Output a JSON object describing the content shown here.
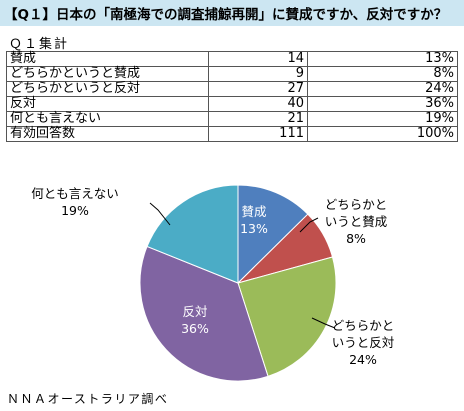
{
  "title": "【Q１】日本の「南極海での調査捕鯨再開」に賛成ですか、反対ですか？",
  "table": {
    "heading": "Ｑ１集計",
    "rows": [
      {
        "label": "賛成",
        "count": "14",
        "pct": "13%"
      },
      {
        "label": "どちらかというと賛成",
        "count": "9",
        "pct": "8%"
      },
      {
        "label": "どちらかというと反対",
        "count": "27",
        "pct": "24%"
      },
      {
        "label": "反対",
        "count": "40",
        "pct": "36%"
      },
      {
        "label": "何とも言えない",
        "count": "21",
        "pct": "19%"
      },
      {
        "label": "有効回答数",
        "count": "111",
        "pct": "100%"
      }
    ]
  },
  "chart_data": {
    "type": "pie",
    "slices": [
      {
        "label": "賛成",
        "label_lines": [
          "賛成"
        ],
        "value": 14,
        "percent_label": "13%",
        "color": "#4f7fbe"
      },
      {
        "label": "どちらかというと賛成",
        "label_lines": [
          "どちらかと",
          "いうと賛成"
        ],
        "value": 9,
        "percent_label": "8%",
        "color": "#c0504d"
      },
      {
        "label": "どちらかというと反対",
        "label_lines": [
          "どちらかと",
          "いうと反対"
        ],
        "value": 27,
        "percent_label": "24%",
        "color": "#9bbb59"
      },
      {
        "label": "反対",
        "label_lines": [
          "反対"
        ],
        "value": 40,
        "percent_label": "36%",
        "color": "#8064a2"
      },
      {
        "label": "何とも言えない",
        "label_lines": [
          "何とも言えない"
        ],
        "value": 21,
        "percent_label": "19%",
        "color": "#4bacc6"
      }
    ],
    "total": 111
  },
  "source": "ＮＮＡオーストラリア調べ"
}
